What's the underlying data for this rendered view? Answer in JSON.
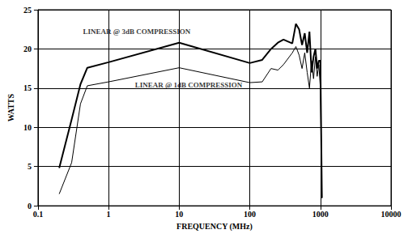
{
  "chart_data": {
    "type": "line",
    "x_label": "FREQUENCY (MHz)",
    "y_label": "WATTS",
    "log": "x",
    "grid": true,
    "xlim": [
      0.1,
      10000
    ],
    "xticks": [
      0.1,
      1,
      10,
      100,
      1000,
      10000
    ],
    "ylim": [
      0,
      25
    ],
    "yticks": [
      0,
      5,
      10,
      15,
      20,
      25
    ],
    "x": [
      0.2,
      0.3,
      0.4,
      0.5,
      1,
      10,
      100,
      150,
      200,
      250,
      300,
      400,
      450,
      500,
      550,
      600,
      650,
      700,
      750,
      800,
      850,
      900,
      950,
      1000,
      1050
    ],
    "series": [
      {
        "name": "LINEAR @ 3dB COMPRESSION",
        "color": "#000000",
        "line_style": "thick",
        "values": [
          4.8,
          11,
          15.5,
          17.6,
          18.3,
          20.8,
          18.2,
          18.6,
          20,
          20.8,
          21.2,
          20.7,
          23.2,
          22.5,
          20.5,
          22,
          19.5,
          22.2,
          17,
          19,
          20,
          17.5,
          18.5,
          18.5,
          1
        ]
      },
      {
        "name": "LINEAR @ 1dB COMPRESSION",
        "color": "#000000",
        "line_style": "thin",
        "values": [
          1.5,
          5.5,
          13,
          15.3,
          15.8,
          17.6,
          15.7,
          15.8,
          17.5,
          17.3,
          18,
          19.5,
          20.3,
          19.2,
          17.5,
          19.5,
          17,
          15,
          18.5,
          16.2,
          19,
          16.5,
          18,
          15,
          1
        ]
      }
    ],
    "annotations": [
      {
        "text": "LINEAR @ 3dB COMPRESSION",
        "x": 2.5,
        "y": 22.2
      },
      {
        "text": "LINEAR @ 1dB COMPRESSION",
        "x": 13.6,
        "y": 15.4
      }
    ]
  }
}
